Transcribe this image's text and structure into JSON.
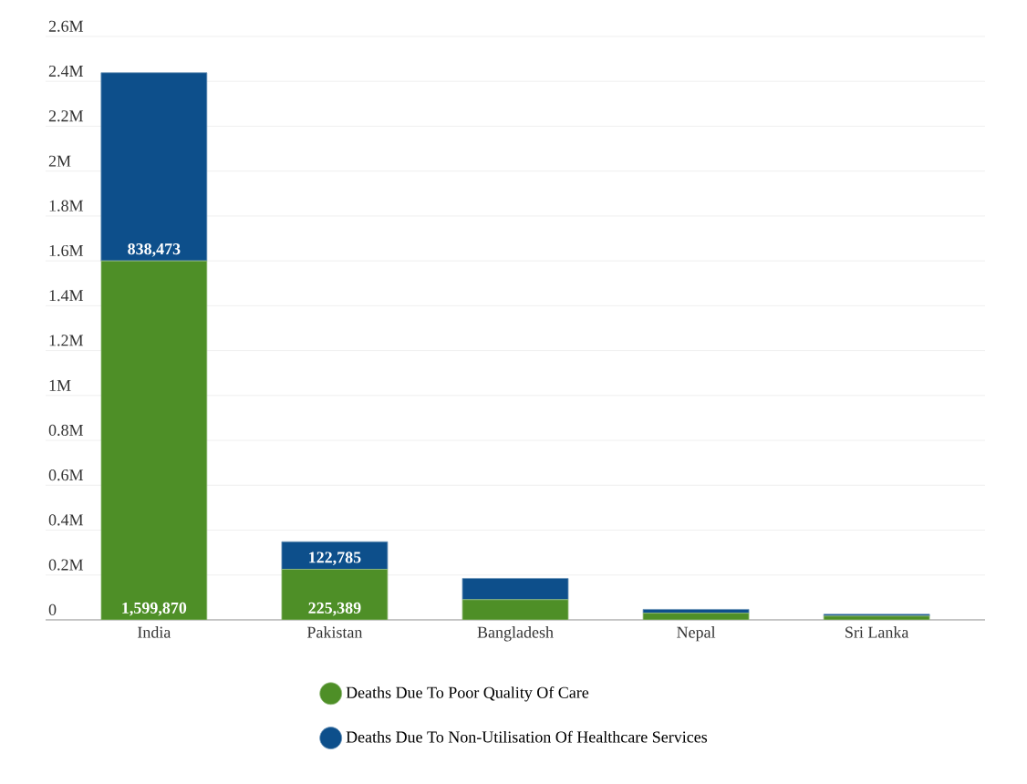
{
  "chart_data": {
    "type": "bar",
    "stacked": true,
    "categories": [
      "India",
      "Pakistan",
      "Bangladesh",
      "Nepal",
      "Sri Lanka"
    ],
    "series": [
      {
        "name": "Deaths Due To Poor Quality Of Care",
        "color": "#4e8f27",
        "values": [
          1599870,
          225389,
          90000,
          30000,
          17000
        ],
        "value_labels": [
          "1,599,870",
          "225,389",
          null,
          null,
          null
        ]
      },
      {
        "name": "Deaths Due To Non-Utilisation Of Healthcare Services",
        "color": "#0d4f8b",
        "values": [
          838473,
          122785,
          95000,
          17000,
          8000
        ],
        "value_labels": [
          "838,473",
          "122,785",
          null,
          null,
          null
        ]
      }
    ],
    "ylim": [
      0,
      2600000
    ],
    "yticks": [
      {
        "value": 0,
        "label": "0"
      },
      {
        "value": 200000,
        "label": "0.2M"
      },
      {
        "value": 400000,
        "label": "0.4M"
      },
      {
        "value": 600000,
        "label": "0.6M"
      },
      {
        "value": 800000,
        "label": "0.8M"
      },
      {
        "value": 1000000,
        "label": "1M"
      },
      {
        "value": 1200000,
        "label": "1.2M"
      },
      {
        "value": 1400000,
        "label": "1.4M"
      },
      {
        "value": 1600000,
        "label": "1.6M"
      },
      {
        "value": 1800000,
        "label": "1.8M"
      },
      {
        "value": 2000000,
        "label": "2M"
      },
      {
        "value": 2200000,
        "label": "2.2M"
      },
      {
        "value": 2400000,
        "label": "2.4M"
      },
      {
        "value": 2600000,
        "label": "2.6M"
      }
    ],
    "grid": "y",
    "legend": "bottom",
    "marker": "circle"
  }
}
